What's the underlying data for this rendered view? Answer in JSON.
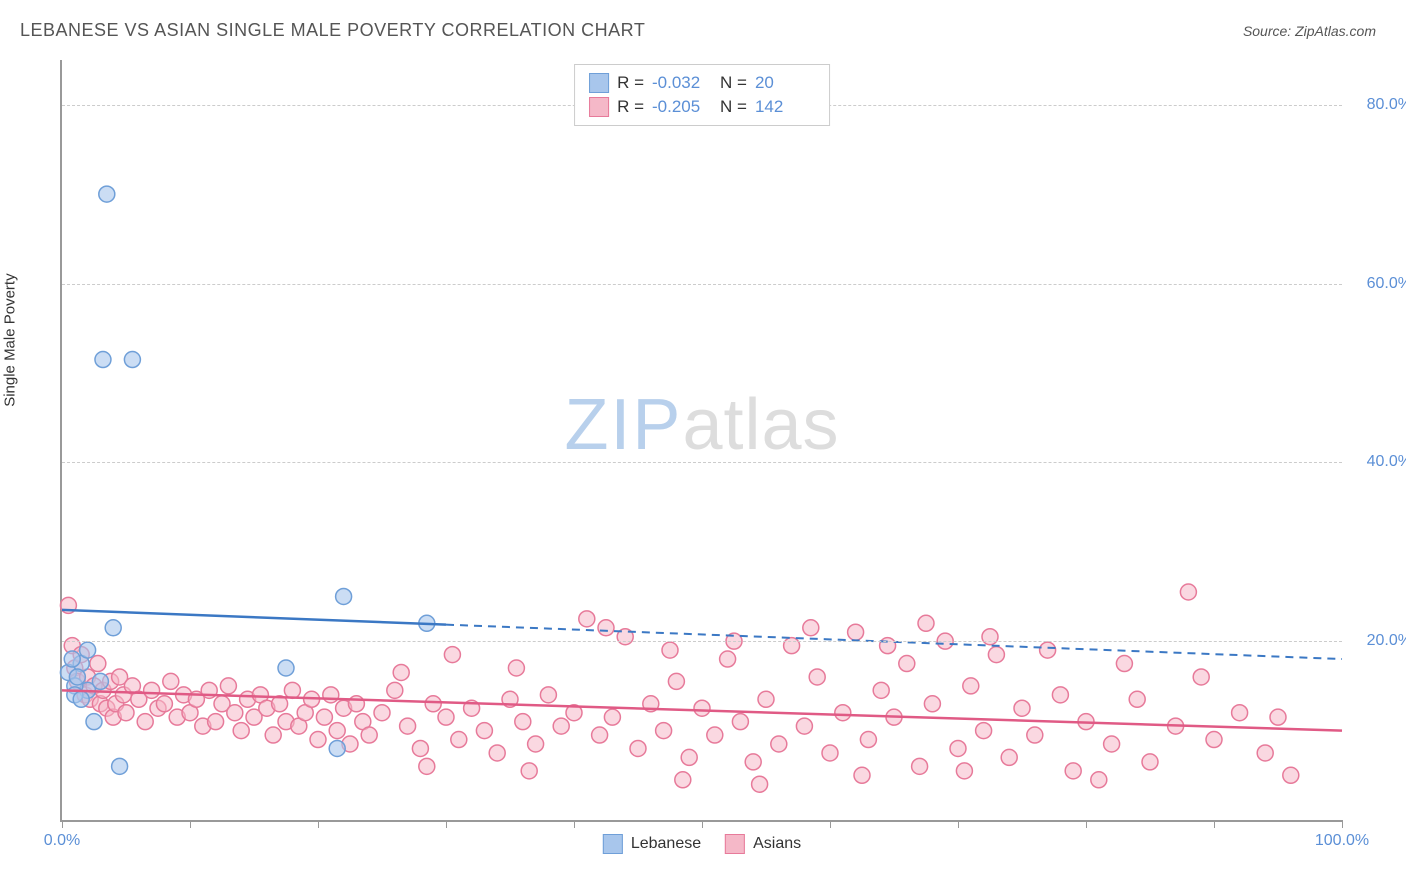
{
  "title": "LEBANESE VS ASIAN SINGLE MALE POVERTY CORRELATION CHART",
  "source": "Source: ZipAtlas.com",
  "ylabel": "Single Male Poverty",
  "watermark_zip": "ZIP",
  "watermark_atlas": "atlas",
  "chart": {
    "type": "scatter",
    "xlim": [
      0,
      100
    ],
    "ylim": [
      0,
      85
    ],
    "x_ticks": [
      0,
      10,
      20,
      30,
      40,
      50,
      60,
      70,
      80,
      90,
      100
    ],
    "x_tick_labels_shown": {
      "0": "0.0%",
      "100": "100.0%"
    },
    "y_gridlines": [
      20,
      40,
      60,
      80
    ],
    "y_tick_labels": {
      "20": "20.0%",
      "40": "40.0%",
      "60": "60.0%",
      "80": "80.0%"
    },
    "background_color": "#ffffff",
    "grid_color": "#cccccc",
    "axis_color": "#999999",
    "tick_label_color": "#5b8fd6",
    "series": [
      {
        "name": "Lebanese",
        "marker_color_fill": "#a8c6ec",
        "marker_color_stroke": "#6f9fd8",
        "marker_opacity": 0.6,
        "marker_radius": 8,
        "trend_color": "#3b78c4",
        "trend_solid_until_x": 30,
        "trend_start_y": 23.5,
        "trend_end_y": 18.0,
        "R": "-0.032",
        "N": "20",
        "points": [
          [
            3.5,
            70.0
          ],
          [
            3.2,
            51.5
          ],
          [
            5.5,
            51.5
          ],
          [
            2.0,
            14.5
          ],
          [
            0.5,
            16.5
          ],
          [
            1.0,
            15.0
          ],
          [
            1.5,
            17.5
          ],
          [
            2.0,
            19.0
          ],
          [
            4.0,
            21.5
          ],
          [
            1.0,
            14.0
          ],
          [
            2.5,
            11.0
          ],
          [
            4.5,
            6.0
          ],
          [
            1.5,
            13.5
          ],
          [
            3.0,
            15.5
          ],
          [
            17.5,
            17.0
          ],
          [
            22.0,
            25.0
          ],
          [
            21.5,
            8.0
          ],
          [
            28.5,
            22.0
          ],
          [
            0.8,
            18.0
          ],
          [
            1.2,
            16.0
          ]
        ]
      },
      {
        "name": "Asians",
        "marker_color_fill": "#f5b8c8",
        "marker_color_stroke": "#e77a9a",
        "marker_opacity": 0.55,
        "marker_radius": 8,
        "trend_color": "#e05a85",
        "trend_solid_until_x": 100,
        "trend_start_y": 14.5,
        "trend_end_y": 10.0,
        "R": "-0.205",
        "N": "142",
        "points": [
          [
            0.5,
            24.0
          ],
          [
            0.8,
            19.5
          ],
          [
            1.0,
            17.0
          ],
          [
            1.2,
            15.5
          ],
          [
            1.5,
            18.5
          ],
          [
            1.8,
            14.0
          ],
          [
            2.0,
            16.0
          ],
          [
            2.2,
            13.5
          ],
          [
            2.5,
            15.0
          ],
          [
            2.8,
            17.5
          ],
          [
            3.0,
            13.0
          ],
          [
            3.2,
            14.5
          ],
          [
            3.5,
            12.5
          ],
          [
            3.8,
            15.5
          ],
          [
            4.0,
            11.5
          ],
          [
            4.2,
            13.0
          ],
          [
            4.5,
            16.0
          ],
          [
            4.8,
            14.0
          ],
          [
            5.0,
            12.0
          ],
          [
            5.5,
            15.0
          ],
          [
            6.0,
            13.5
          ],
          [
            6.5,
            11.0
          ],
          [
            7.0,
            14.5
          ],
          [
            7.5,
            12.5
          ],
          [
            8.0,
            13.0
          ],
          [
            8.5,
            15.5
          ],
          [
            9.0,
            11.5
          ],
          [
            9.5,
            14.0
          ],
          [
            10.0,
            12.0
          ],
          [
            10.5,
            13.5
          ],
          [
            11.0,
            10.5
          ],
          [
            11.5,
            14.5
          ],
          [
            12.0,
            11.0
          ],
          [
            12.5,
            13.0
          ],
          [
            13.0,
            15.0
          ],
          [
            13.5,
            12.0
          ],
          [
            14.0,
            10.0
          ],
          [
            14.5,
            13.5
          ],
          [
            15.0,
            11.5
          ],
          [
            15.5,
            14.0
          ],
          [
            16.0,
            12.5
          ],
          [
            16.5,
            9.5
          ],
          [
            17.0,
            13.0
          ],
          [
            17.5,
            11.0
          ],
          [
            18.0,
            14.5
          ],
          [
            18.5,
            10.5
          ],
          [
            19.0,
            12.0
          ],
          [
            19.5,
            13.5
          ],
          [
            20.0,
            9.0
          ],
          [
            20.5,
            11.5
          ],
          [
            21.0,
            14.0
          ],
          [
            21.5,
            10.0
          ],
          [
            22.0,
            12.5
          ],
          [
            22.5,
            8.5
          ],
          [
            23.0,
            13.0
          ],
          [
            23.5,
            11.0
          ],
          [
            24.0,
            9.5
          ],
          [
            25.0,
            12.0
          ],
          [
            26.0,
            14.5
          ],
          [
            27.0,
            10.5
          ],
          [
            28.0,
            8.0
          ],
          [
            29.0,
            13.0
          ],
          [
            30.0,
            11.5
          ],
          [
            31.0,
            9.0
          ],
          [
            32.0,
            12.5
          ],
          [
            33.0,
            10.0
          ],
          [
            34.0,
            7.5
          ],
          [
            35.0,
            13.5
          ],
          [
            36.0,
            11.0
          ],
          [
            37.0,
            8.5
          ],
          [
            38.0,
            14.0
          ],
          [
            39.0,
            10.5
          ],
          [
            40.0,
            12.0
          ],
          [
            41.0,
            22.5
          ],
          [
            42.0,
            9.5
          ],
          [
            43.0,
            11.5
          ],
          [
            44.0,
            20.5
          ],
          [
            45.0,
            8.0
          ],
          [
            46.0,
            13.0
          ],
          [
            47.0,
            10.0
          ],
          [
            48.0,
            15.5
          ],
          [
            49.0,
            7.0
          ],
          [
            50.0,
            12.5
          ],
          [
            51.0,
            9.5
          ],
          [
            52.0,
            18.0
          ],
          [
            53.0,
            11.0
          ],
          [
            54.0,
            6.5
          ],
          [
            55.0,
            13.5
          ],
          [
            56.0,
            8.5
          ],
          [
            57.0,
            19.5
          ],
          [
            58.0,
            10.5
          ],
          [
            59.0,
            16.0
          ],
          [
            60.0,
            7.5
          ],
          [
            61.0,
            12.0
          ],
          [
            62.0,
            21.0
          ],
          [
            63.0,
            9.0
          ],
          [
            64.0,
            14.5
          ],
          [
            65.0,
            11.5
          ],
          [
            66.0,
            17.5
          ],
          [
            67.0,
            6.0
          ],
          [
            68.0,
            13.0
          ],
          [
            69.0,
            20.0
          ],
          [
            70.0,
            8.0
          ],
          [
            71.0,
            15.0
          ],
          [
            72.0,
            10.0
          ],
          [
            73.0,
            18.5
          ],
          [
            74.0,
            7.0
          ],
          [
            75.0,
            12.5
          ],
          [
            76.0,
            9.5
          ],
          [
            78.0,
            14.0
          ],
          [
            79.0,
            5.5
          ],
          [
            80.0,
            11.0
          ],
          [
            82.0,
            8.5
          ],
          [
            84.0,
            13.5
          ],
          [
            85.0,
            6.5
          ],
          [
            87.0,
            10.5
          ],
          [
            88.0,
            25.5
          ],
          [
            90.0,
            9.0
          ],
          [
            92.0,
            12.0
          ],
          [
            94.0,
            7.5
          ],
          [
            95.0,
            11.5
          ],
          [
            62.5,
            5.0
          ],
          [
            48.5,
            4.5
          ],
          [
            36.5,
            5.5
          ],
          [
            28.5,
            6.0
          ],
          [
            54.5,
            4.0
          ],
          [
            70.5,
            5.5
          ],
          [
            81.0,
            4.5
          ],
          [
            42.5,
            21.5
          ],
          [
            47.5,
            19.0
          ],
          [
            52.5,
            20.0
          ],
          [
            58.5,
            21.5
          ],
          [
            64.5,
            19.5
          ],
          [
            67.5,
            22.0
          ],
          [
            72.5,
            20.5
          ],
          [
            77.0,
            19.0
          ],
          [
            30.5,
            18.5
          ],
          [
            35.5,
            17.0
          ],
          [
            26.5,
            16.5
          ],
          [
            83.0,
            17.5
          ],
          [
            89.0,
            16.0
          ],
          [
            96.0,
            5.0
          ]
        ]
      }
    ]
  },
  "stats_legend_labels": {
    "R": "R =",
    "N": "N ="
  },
  "bottom_legend": [
    "Lebanese",
    "Asians"
  ]
}
